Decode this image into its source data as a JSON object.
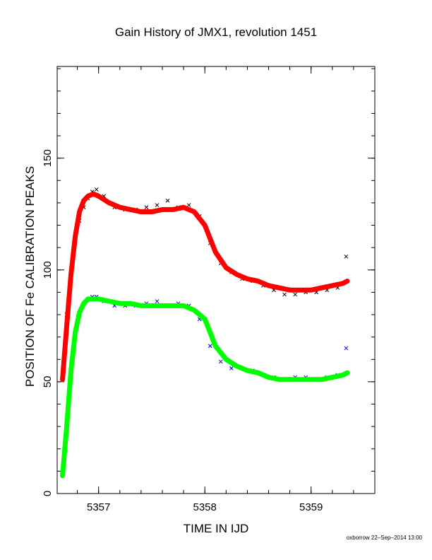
{
  "chart_data": {
    "type": "scatter",
    "title": "Gain History of JMX1, revolution 1451",
    "xlabel": "TIME IN IJD",
    "ylabel": "POSITION OF Fe CALIBRATION PEAKS",
    "xlim": [
      5356.61,
      5359.6
    ],
    "ylim": [
      0,
      191
    ],
    "x_ticks": [
      5357,
      5358,
      5359
    ],
    "y_ticks": [
      0,
      50,
      100,
      150
    ],
    "grid": false,
    "legend": "none",
    "footer": "oxborrow 22–Sep–2014 13:00",
    "colors": {
      "upper_points": "#000000",
      "upper_fit": "#ff0000",
      "lower_points": "#0000cc",
      "lower_fit": "#00ff00"
    },
    "series": [
      {
        "marker": "x",
        "color": "#000000",
        "x": [
          5356.66,
          5356.7,
          5356.74,
          5356.78,
          5356.82,
          5356.86,
          5356.9,
          5356.94,
          5356.98,
          5357.05,
          5357.15,
          5357.25,
          5357.35,
          5357.45,
          5357.55,
          5357.65,
          5357.75,
          5357.85,
          5357.95,
          5358.05,
          5358.15,
          5358.25,
          5358.35,
          5358.45,
          5358.55,
          5358.65,
          5358.75,
          5358.85,
          5358.95,
          5359.05,
          5359.15,
          5359.25,
          5359.33
        ],
        "y": [
          52,
          80,
          100,
          112,
          122,
          128,
          132,
          135,
          136,
          133,
          128,
          127,
          127,
          128,
          129,
          131,
          128,
          129,
          124,
          112,
          103,
          99,
          96,
          95,
          93,
          91,
          89,
          89,
          90,
          90,
          91,
          92,
          106
        ]
      },
      {
        "marker": "line",
        "color": "#ff0000",
        "x": [
          5356.66,
          5356.7,
          5356.74,
          5356.78,
          5356.82,
          5356.86,
          5356.9,
          5356.95,
          5357.0,
          5357.1,
          5357.2,
          5357.3,
          5357.4,
          5357.5,
          5357.6,
          5357.7,
          5357.8,
          5357.9,
          5358.0,
          5358.1,
          5358.2,
          5358.3,
          5358.4,
          5358.5,
          5358.6,
          5358.7,
          5358.8,
          5358.9,
          5359.0,
          5359.1,
          5359.2,
          5359.3,
          5359.34
        ],
        "y": [
          51,
          75,
          98,
          115,
          126,
          131,
          133,
          134,
          133,
          130,
          128,
          127,
          126,
          126,
          127,
          127,
          128,
          126,
          120,
          108,
          101,
          98,
          96,
          95,
          93,
          92,
          91,
          91,
          91,
          92,
          93,
          94,
          95
        ]
      },
      {
        "marker": "x",
        "color": "#0000cc",
        "x": [
          5356.66,
          5356.7,
          5356.74,
          5356.78,
          5356.82,
          5356.86,
          5356.9,
          5356.94,
          5356.98,
          5357.05,
          5357.15,
          5357.25,
          5357.35,
          5357.45,
          5357.55,
          5357.65,
          5357.75,
          5357.85,
          5357.95,
          5358.05,
          5358.15,
          5358.25,
          5358.35,
          5358.45,
          5358.55,
          5358.65,
          5358.75,
          5358.85,
          5358.95,
          5359.05,
          5359.15,
          5359.25,
          5359.33
        ],
        "y": [
          10,
          32,
          55,
          70,
          80,
          85,
          87,
          88,
          88,
          86,
          84,
          84,
          84,
          85,
          86,
          84,
          85,
          84,
          78,
          66,
          59,
          56,
          56,
          55,
          53,
          52,
          51,
          52,
          52,
          51,
          52,
          53,
          65
        ]
      },
      {
        "marker": "line",
        "color": "#00ff00",
        "x": [
          5356.66,
          5356.7,
          5356.74,
          5356.78,
          5356.82,
          5356.86,
          5356.9,
          5356.95,
          5357.0,
          5357.1,
          5357.2,
          5357.3,
          5357.4,
          5357.5,
          5357.6,
          5357.7,
          5357.8,
          5357.9,
          5358.0,
          5358.1,
          5358.2,
          5358.3,
          5358.4,
          5358.5,
          5358.6,
          5358.7,
          5358.8,
          5358.9,
          5359.0,
          5359.1,
          5359.2,
          5359.3,
          5359.34
        ],
        "y": [
          8,
          30,
          55,
          72,
          81,
          85,
          87,
          87,
          87,
          86,
          85,
          85,
          84,
          84,
          84,
          84,
          84,
          82,
          78,
          66,
          60,
          57,
          55,
          54,
          52,
          51,
          51,
          51,
          51,
          51,
          52,
          53,
          54
        ]
      }
    ]
  }
}
